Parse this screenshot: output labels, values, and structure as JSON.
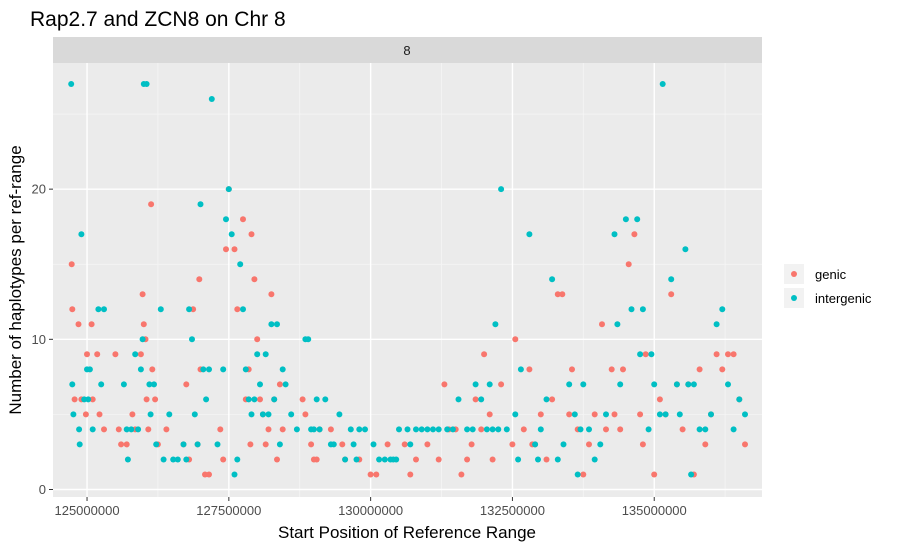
{
  "chart_data": {
    "type": "scatter",
    "title": "Rap2.7 and ZCN8 on Chr 8",
    "facet_label": "8",
    "xlabel": "Start Position of Reference Range",
    "ylabel": "Number of haplotypes per ref-range",
    "xlim": [
      124400000,
      136900000
    ],
    "ylim": [
      -0.5,
      28.4
    ],
    "x_ticks": [
      125000000,
      127500000,
      130000000,
      132500000,
      135000000
    ],
    "x_tick_labels": [
      "125000000",
      "127500000",
      "130000000",
      "132500000",
      "135000000"
    ],
    "y_ticks": [
      0,
      10,
      20
    ],
    "y_tick_labels": [
      "0",
      "10",
      "20"
    ],
    "grid": true,
    "legend_position": "right",
    "legend": [
      "genic",
      "intergenic"
    ],
    "series": [
      {
        "name": "genic",
        "color": "#F8766D",
        "points": [
          [
            124730000,
            15
          ],
          [
            124740000,
            12
          ],
          [
            124780000,
            6
          ],
          [
            124850000,
            11
          ],
          [
            124900000,
            6
          ],
          [
            124980000,
            5
          ],
          [
            125000000,
            9
          ],
          [
            125080000,
            11
          ],
          [
            125100000,
            6
          ],
          [
            125180000,
            9
          ],
          [
            125220000,
            5
          ],
          [
            125300000,
            4
          ],
          [
            125500000,
            9
          ],
          [
            125560000,
            4
          ],
          [
            125600000,
            3
          ],
          [
            125700000,
            3
          ],
          [
            125800000,
            5
          ],
          [
            125850000,
            4
          ],
          [
            125950000,
            9
          ],
          [
            125980000,
            13
          ],
          [
            126000000,
            11
          ],
          [
            126030000,
            10
          ],
          [
            126050000,
            6
          ],
          [
            126080000,
            4
          ],
          [
            126130000,
            19
          ],
          [
            126150000,
            8
          ],
          [
            126200000,
            6
          ],
          [
            126250000,
            3
          ],
          [
            126400000,
            4
          ],
          [
            126700000,
            3
          ],
          [
            126750000,
            7
          ],
          [
            126800000,
            2
          ],
          [
            126870000,
            12
          ],
          [
            126950000,
            3
          ],
          [
            126980000,
            14
          ],
          [
            127000000,
            8
          ],
          [
            127080000,
            1
          ],
          [
            127150000,
            1
          ],
          [
            127350000,
            4
          ],
          [
            127400000,
            2
          ],
          [
            127450000,
            16
          ],
          [
            127500000,
            20
          ],
          [
            127600000,
            16
          ],
          [
            127650000,
            12
          ],
          [
            127750000,
            18
          ],
          [
            127800000,
            6
          ],
          [
            127850000,
            8
          ],
          [
            127880000,
            3
          ],
          [
            127900000,
            17
          ],
          [
            127950000,
            14
          ],
          [
            128000000,
            10
          ],
          [
            128050000,
            6
          ],
          [
            128100000,
            5
          ],
          [
            128150000,
            3
          ],
          [
            128200000,
            4
          ],
          [
            128250000,
            13
          ],
          [
            128300000,
            6
          ],
          [
            128350000,
            2
          ],
          [
            128400000,
            7
          ],
          [
            128450000,
            4
          ],
          [
            128800000,
            6
          ],
          [
            128850000,
            5
          ],
          [
            128950000,
            3
          ],
          [
            129000000,
            2
          ],
          [
            129050000,
            2
          ],
          [
            129100000,
            4
          ],
          [
            129300000,
            4
          ],
          [
            129500000,
            3
          ],
          [
            129550000,
            2
          ],
          [
            129800000,
            2
          ],
          [
            130000000,
            1
          ],
          [
            130100000,
            1
          ],
          [
            130300000,
            3
          ],
          [
            130600000,
            3
          ],
          [
            130700000,
            1
          ],
          [
            130800000,
            2
          ],
          [
            131000000,
            3
          ],
          [
            131200000,
            2
          ],
          [
            131300000,
            7
          ],
          [
            131380000,
            4
          ],
          [
            131500000,
            4
          ],
          [
            131600000,
            1
          ],
          [
            131700000,
            2
          ],
          [
            131780000,
            3
          ],
          [
            131850000,
            6
          ],
          [
            131950000,
            4
          ],
          [
            132000000,
            9
          ],
          [
            132100000,
            5
          ],
          [
            132150000,
            2
          ],
          [
            132300000,
            7
          ],
          [
            132500000,
            3
          ],
          [
            132550000,
            10
          ],
          [
            132700000,
            4
          ],
          [
            132800000,
            8
          ],
          [
            132850000,
            3
          ],
          [
            132900000,
            3
          ],
          [
            133000000,
            5
          ],
          [
            133100000,
            2
          ],
          [
            133200000,
            6
          ],
          [
            133300000,
            13
          ],
          [
            133380000,
            13
          ],
          [
            133500000,
            5
          ],
          [
            133550000,
            8
          ],
          [
            133650000,
            4
          ],
          [
            133750000,
            1
          ],
          [
            133850000,
            3
          ],
          [
            133950000,
            5
          ],
          [
            134080000,
            11
          ],
          [
            134150000,
            4
          ],
          [
            134250000,
            8
          ],
          [
            134300000,
            5
          ],
          [
            134400000,
            4
          ],
          [
            134450000,
            8
          ],
          [
            134550000,
            15
          ],
          [
            134650000,
            17
          ],
          [
            134750000,
            5
          ],
          [
            134800000,
            3
          ],
          [
            134850000,
            9
          ],
          [
            135000000,
            1
          ],
          [
            135100000,
            6
          ],
          [
            135200000,
            5
          ],
          [
            135300000,
            13
          ],
          [
            135400000,
            7
          ],
          [
            135500000,
            4
          ],
          [
            135600000,
            7
          ],
          [
            135700000,
            1
          ],
          [
            135800000,
            8
          ],
          [
            135900000,
            3
          ],
          [
            136000000,
            5
          ],
          [
            136100000,
            9
          ],
          [
            136200000,
            8
          ],
          [
            136300000,
            9
          ],
          [
            136400000,
            9
          ],
          [
            136500000,
            6
          ],
          [
            136600000,
            3
          ]
        ]
      },
      {
        "name": "intergenic",
        "color": "#00BFC4",
        "points": [
          [
            124720000,
            27
          ],
          [
            124740000,
            7
          ],
          [
            124760000,
            5
          ],
          [
            124860000,
            4
          ],
          [
            124870000,
            3
          ],
          [
            124900000,
            17
          ],
          [
            124950000,
            6
          ],
          [
            125000000,
            8
          ],
          [
            125020000,
            6
          ],
          [
            125050000,
            8
          ],
          [
            125100000,
            4
          ],
          [
            125200000,
            12
          ],
          [
            125250000,
            7
          ],
          [
            125300000,
            12
          ],
          [
            125650000,
            7
          ],
          [
            125700000,
            4
          ],
          [
            125720000,
            2
          ],
          [
            125780000,
            4
          ],
          [
            125850000,
            9
          ],
          [
            125900000,
            4
          ],
          [
            125950000,
            8
          ],
          [
            125980000,
            10
          ],
          [
            126000000,
            27
          ],
          [
            126050000,
            27
          ],
          [
            126100000,
            7
          ],
          [
            126120000,
            5
          ],
          [
            126180000,
            7
          ],
          [
            126220000,
            3
          ],
          [
            126300000,
            12
          ],
          [
            126350000,
            2
          ],
          [
            126450000,
            5
          ],
          [
            126520000,
            2
          ],
          [
            126600000,
            2
          ],
          [
            126700000,
            3
          ],
          [
            126750000,
            2
          ],
          [
            126800000,
            12
          ],
          [
            126850000,
            10
          ],
          [
            126900000,
            5
          ],
          [
            126950000,
            3
          ],
          [
            127000000,
            19
          ],
          [
            127050000,
            8
          ],
          [
            127100000,
            6
          ],
          [
            127150000,
            8
          ],
          [
            127200000,
            26
          ],
          [
            127300000,
            3
          ],
          [
            127400000,
            8
          ],
          [
            127450000,
            18
          ],
          [
            127500000,
            20
          ],
          [
            127550000,
            17
          ],
          [
            127600000,
            1
          ],
          [
            127650000,
            2
          ],
          [
            127700000,
            15
          ],
          [
            127750000,
            12
          ],
          [
            127800000,
            8
          ],
          [
            127850000,
            6
          ],
          [
            127900000,
            5
          ],
          [
            127950000,
            6
          ],
          [
            128000000,
            9
          ],
          [
            128050000,
            7
          ],
          [
            128100000,
            5
          ],
          [
            128150000,
            9
          ],
          [
            128200000,
            5
          ],
          [
            128250000,
            11
          ],
          [
            128300000,
            6
          ],
          [
            128350000,
            11
          ],
          [
            128400000,
            3
          ],
          [
            128450000,
            8
          ],
          [
            128500000,
            7
          ],
          [
            128600000,
            5
          ],
          [
            128700000,
            4
          ],
          [
            128850000,
            10
          ],
          [
            128900000,
            10
          ],
          [
            128950000,
            4
          ],
          [
            129000000,
            4
          ],
          [
            129050000,
            6
          ],
          [
            129100000,
            4
          ],
          [
            129200000,
            6
          ],
          [
            129300000,
            3
          ],
          [
            129350000,
            3
          ],
          [
            129450000,
            5
          ],
          [
            129550000,
            2
          ],
          [
            129650000,
            4
          ],
          [
            129700000,
            3
          ],
          [
            129750000,
            2
          ],
          [
            129800000,
            4
          ],
          [
            129900000,
            4
          ],
          [
            130050000,
            3
          ],
          [
            130150000,
            2
          ],
          [
            130250000,
            2
          ],
          [
            130350000,
            2
          ],
          [
            130400000,
            2
          ],
          [
            130450000,
            2
          ],
          [
            130500000,
            4
          ],
          [
            130650000,
            4
          ],
          [
            130700000,
            3
          ],
          [
            130800000,
            4
          ],
          [
            130900000,
            4
          ],
          [
            131000000,
            4
          ],
          [
            131100000,
            4
          ],
          [
            131200000,
            4
          ],
          [
            131350000,
            4
          ],
          [
            131450000,
            4
          ],
          [
            131550000,
            6
          ],
          [
            131700000,
            4
          ],
          [
            131800000,
            4
          ],
          [
            131850000,
            7
          ],
          [
            131950000,
            6
          ],
          [
            132050000,
            4
          ],
          [
            132100000,
            7
          ],
          [
            132150000,
            4
          ],
          [
            132200000,
            11
          ],
          [
            132250000,
            4
          ],
          [
            132300000,
            20
          ],
          [
            132400000,
            4
          ],
          [
            132550000,
            5
          ],
          [
            132600000,
            2
          ],
          [
            132650000,
            8
          ],
          [
            132800000,
            17
          ],
          [
            132900000,
            3
          ],
          [
            132950000,
            2
          ],
          [
            133000000,
            4
          ],
          [
            133100000,
            6
          ],
          [
            133200000,
            14
          ],
          [
            133300000,
            2
          ],
          [
            133400000,
            3
          ],
          [
            133500000,
            7
          ],
          [
            133600000,
            5
          ],
          [
            133650000,
            1
          ],
          [
            133700000,
            4
          ],
          [
            133750000,
            7
          ],
          [
            133850000,
            4
          ],
          [
            133950000,
            2
          ],
          [
            134050000,
            3
          ],
          [
            134150000,
            5
          ],
          [
            134300000,
            17
          ],
          [
            134350000,
            11
          ],
          [
            134400000,
            7
          ],
          [
            134500000,
            18
          ],
          [
            134600000,
            12
          ],
          [
            134700000,
            18
          ],
          [
            134750000,
            9
          ],
          [
            134800000,
            12
          ],
          [
            134900000,
            4
          ],
          [
            134950000,
            9
          ],
          [
            135000000,
            7
          ],
          [
            135100000,
            5
          ],
          [
            135150000,
            27
          ],
          [
            135200000,
            5
          ],
          [
            135300000,
            14
          ],
          [
            135400000,
            7
          ],
          [
            135450000,
            5
          ],
          [
            135550000,
            16
          ],
          [
            135600000,
            7
          ],
          [
            135650000,
            1
          ],
          [
            135700000,
            7
          ],
          [
            135800000,
            4
          ],
          [
            135900000,
            4
          ],
          [
            136000000,
            5
          ],
          [
            136100000,
            11
          ],
          [
            136200000,
            12
          ],
          [
            136300000,
            7
          ],
          [
            136400000,
            4
          ],
          [
            136500000,
            6
          ],
          [
            136600000,
            5
          ]
        ]
      }
    ]
  }
}
